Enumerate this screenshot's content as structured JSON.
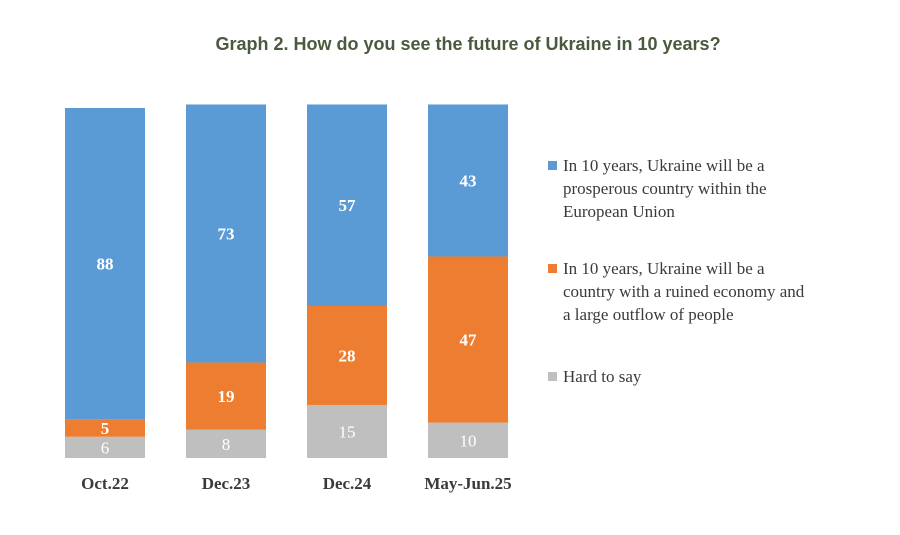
{
  "chart_data": {
    "type": "bar",
    "stacked": true,
    "title": "Graph 2. How do you see the future of Ukraine in 10 years?",
    "categories": [
      "Oct.22",
      "Dec.23",
      "Dec.24",
      "May-Jun.25"
    ],
    "series": [
      {
        "name": "In 10 years, Ukraine will be a prosperous country within the European Union",
        "legend_lines": [
          "In 10 years, Ukraine will be a",
          "prosperous country within the",
          "European Union"
        ],
        "color": "#5b9bd5",
        "values": [
          88,
          73,
          57,
          43
        ]
      },
      {
        "name": "In 10 years, Ukraine will be a country with a ruined economy and a large outflow of people",
        "legend_lines": [
          "In 10 years, Ukraine will be a",
          "country with a ruined economy and",
          "a large outflow of people"
        ],
        "color": "#ed7d31",
        "values": [
          5,
          19,
          28,
          47
        ]
      },
      {
        "name": "Hard to say",
        "legend_lines": [
          "Hard to say"
        ],
        "color": "#bfbfbf",
        "values": [
          6,
          8,
          15,
          10
        ]
      }
    ],
    "ylim": [
      0,
      99
    ],
    "grid": false,
    "legend_position": "right"
  }
}
